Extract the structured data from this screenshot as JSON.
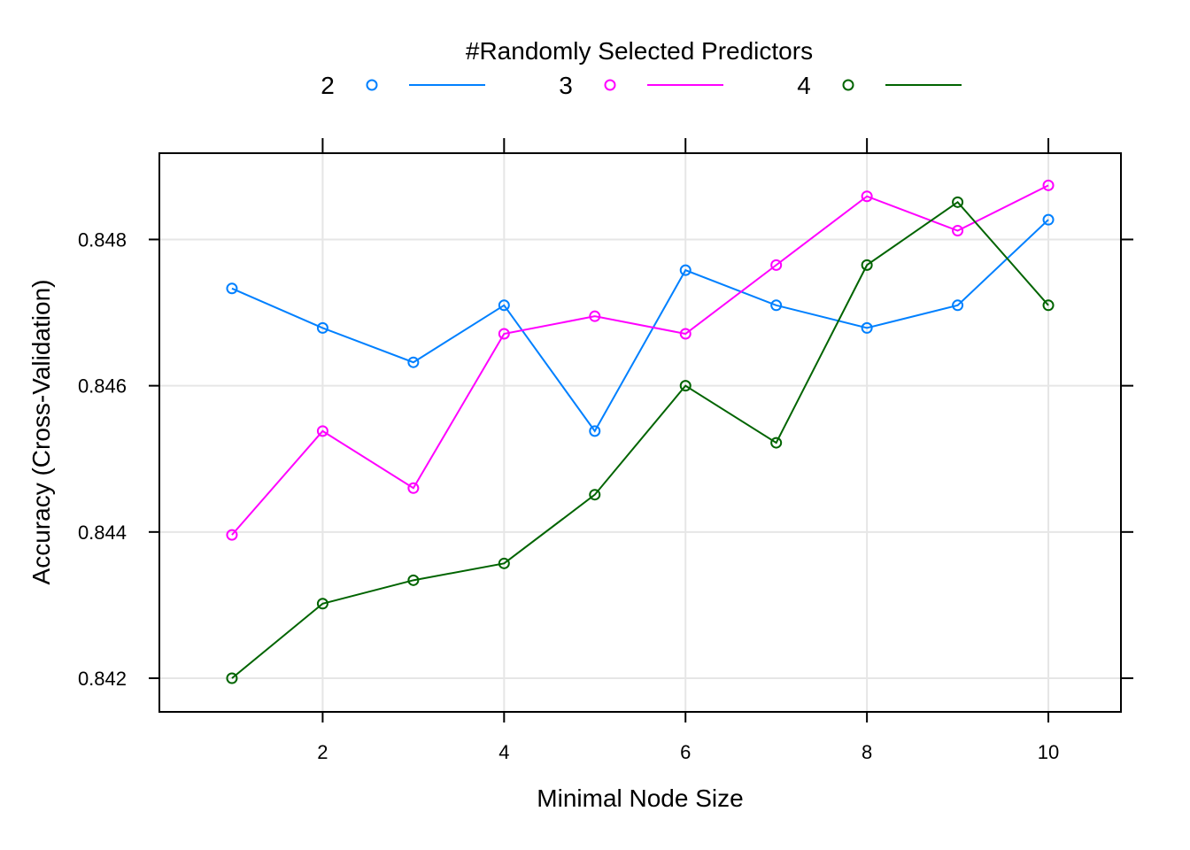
{
  "chart_data": {
    "type": "line",
    "xlabel": "Minimal Node Size",
    "ylabel": "Accuracy (Cross-Validation)",
    "legend_title": "#Randomly Selected Predictors",
    "legend_placement": "top",
    "xlim": [
      0.2,
      10.8
    ],
    "ylim": [
      0.84154,
      0.84918
    ],
    "grid": true,
    "x_ticks": [
      2,
      4,
      6,
      8,
      10
    ],
    "y_ticks": [
      0.842,
      0.844,
      0.846,
      0.848
    ],
    "x_tick_labels": [
      "2",
      "4",
      "6",
      "8",
      "10"
    ],
    "y_tick_labels": [
      "0.842",
      "0.844",
      "0.846",
      "0.848"
    ],
    "x": [
      1,
      2,
      3,
      4,
      5,
      6,
      7,
      8,
      9,
      10
    ],
    "series": [
      {
        "name": "2",
        "color": "#0080ff",
        "values": [
          0.84733,
          0.84679,
          0.84632,
          0.8471,
          0.84538,
          0.84758,
          0.8471,
          0.84679,
          0.8471,
          0.84827
        ]
      },
      {
        "name": "3",
        "color": "#ff00ff",
        "values": [
          0.84396,
          0.84538,
          0.8446,
          0.84671,
          0.84695,
          0.84671,
          0.84765,
          0.84859,
          0.84812,
          0.84874
        ]
      },
      {
        "name": "4",
        "color": "#006400",
        "values": [
          0.842,
          0.84302,
          0.84334,
          0.84357,
          0.84451,
          0.846,
          0.84522,
          0.84765,
          0.84851,
          0.8471
        ]
      }
    ]
  }
}
